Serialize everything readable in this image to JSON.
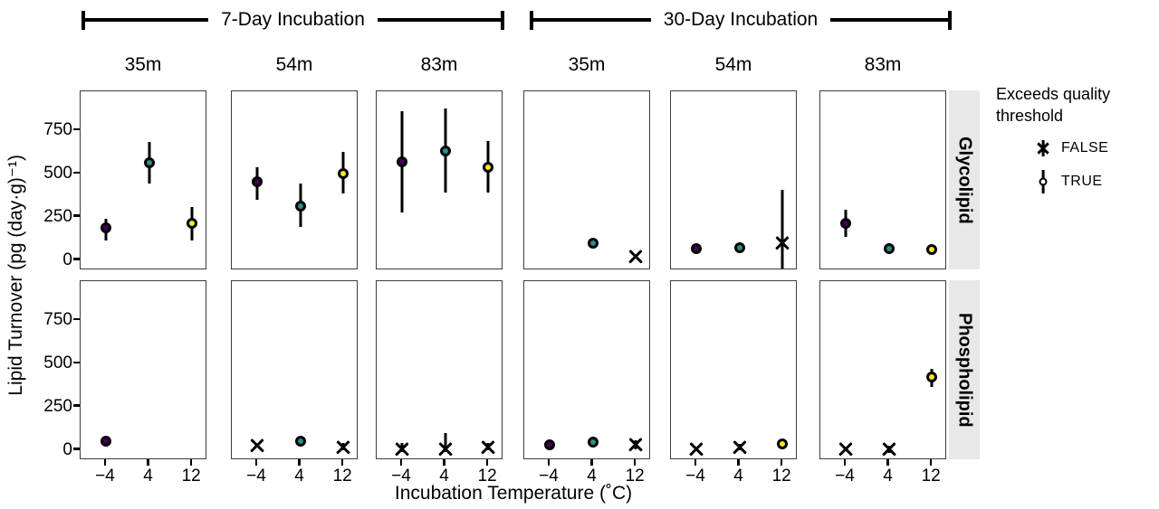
{
  "chart_data": {
    "type": "scatter",
    "title": "",
    "xlabel": "Incubation Temperature (˚C)",
    "ylabel": "Lipid Turnover (pg (day·g)⁻¹)",
    "x_values": [
      -4,
      4,
      12
    ],
    "x_tick_labels": [
      "−4",
      "4",
      "12"
    ],
    "y_ticks": [
      0,
      250,
      500,
      750
    ],
    "ylim": [
      -60,
      975
    ],
    "grid": "off",
    "column_groups": [
      "7-Day Incubation",
      "30-Day Incubation"
    ],
    "column_labels": [
      "35m",
      "54m",
      "83m",
      "35m",
      "54m",
      "83m"
    ],
    "row_labels": [
      "Glycolipid",
      "Phospholipid"
    ],
    "legend": {
      "title_lines": [
        "Exceeds quality",
        "threshold"
      ],
      "position": "right",
      "items": [
        {
          "label": "FALSE",
          "marker": "cross"
        },
        {
          "label": "TRUE",
          "marker": "circle"
        }
      ]
    },
    "temperature_colors": {
      "-4": "#440154",
      "4": "#2A9088",
      "12": "#FDE725"
    },
    "marker_rule": "filled circle = TRUE (exceeds quality threshold), black cross = FALSE",
    "panels": [
      {
        "row": "Glycolipid",
        "group": "7-Day Incubation",
        "depth": "35m",
        "points": [
          {
            "temp_c": -4,
            "value": 185,
            "err_lo": 110,
            "err_hi": 240,
            "exceeds_threshold": true
          },
          {
            "temp_c": 4,
            "value": 560,
            "err_lo": 440,
            "err_hi": 680,
            "exceeds_threshold": true
          },
          {
            "temp_c": 12,
            "value": 210,
            "err_lo": 110,
            "err_hi": 305,
            "exceeds_threshold": true
          }
        ]
      },
      {
        "row": "Glycolipid",
        "group": "7-Day Incubation",
        "depth": "54m",
        "points": [
          {
            "temp_c": -4,
            "value": 450,
            "err_lo": 350,
            "err_hi": 535,
            "exceeds_threshold": true
          },
          {
            "temp_c": 4,
            "value": 310,
            "err_lo": 190,
            "err_hi": 440,
            "exceeds_threshold": true
          },
          {
            "temp_c": 12,
            "value": 500,
            "err_lo": 385,
            "err_hi": 625,
            "exceeds_threshold": true
          }
        ]
      },
      {
        "row": "Glycolipid",
        "group": "7-Day Incubation",
        "depth": "83m",
        "points": [
          {
            "temp_c": -4,
            "value": 565,
            "err_lo": 275,
            "err_hi": 860,
            "exceeds_threshold": true
          },
          {
            "temp_c": 4,
            "value": 630,
            "err_lo": 390,
            "err_hi": 875,
            "exceeds_threshold": true
          },
          {
            "temp_c": 12,
            "value": 535,
            "err_lo": 390,
            "err_hi": 685,
            "exceeds_threshold": true
          }
        ]
      },
      {
        "row": "Glycolipid",
        "group": "30-Day Incubation",
        "depth": "35m",
        "points": [
          {
            "temp_c": 4,
            "value": 95,
            "err_lo": null,
            "err_hi": null,
            "exceeds_threshold": true
          },
          {
            "temp_c": 12,
            "value": 20,
            "err_lo": null,
            "err_hi": null,
            "exceeds_threshold": false
          }
        ]
      },
      {
        "row": "Glycolipid",
        "group": "30-Day Incubation",
        "depth": "54m",
        "points": [
          {
            "temp_c": -4,
            "value": 67,
            "err_lo": null,
            "err_hi": null,
            "exceeds_threshold": true
          },
          {
            "temp_c": 4,
            "value": 72,
            "err_lo": null,
            "err_hi": null,
            "exceeds_threshold": true
          },
          {
            "temp_c": 12,
            "value": 95,
            "err_lo": -50,
            "err_hi": 405,
            "exceeds_threshold": false
          }
        ]
      },
      {
        "row": "Glycolipid",
        "group": "30-Day Incubation",
        "depth": "83m",
        "points": [
          {
            "temp_c": -4,
            "value": 210,
            "err_lo": 135,
            "err_hi": 290,
            "exceeds_threshold": true
          },
          {
            "temp_c": 4,
            "value": 63,
            "err_lo": null,
            "err_hi": null,
            "exceeds_threshold": true
          },
          {
            "temp_c": 12,
            "value": 58,
            "err_lo": null,
            "err_hi": null,
            "exceeds_threshold": true
          }
        ]
      },
      {
        "row": "Phospholipid",
        "group": "7-Day Incubation",
        "depth": "35m",
        "points": [
          {
            "temp_c": -4,
            "value": 48,
            "err_lo": null,
            "err_hi": null,
            "exceeds_threshold": true
          }
        ]
      },
      {
        "row": "Phospholipid",
        "group": "7-Day Incubation",
        "depth": "54m",
        "points": [
          {
            "temp_c": -4,
            "value": 25,
            "err_lo": null,
            "err_hi": null,
            "exceeds_threshold": false
          },
          {
            "temp_c": 4,
            "value": 52,
            "err_lo": null,
            "err_hi": null,
            "exceeds_threshold": true
          },
          {
            "temp_c": 12,
            "value": 15,
            "err_lo": 0,
            "err_hi": 40,
            "exceeds_threshold": false
          }
        ]
      },
      {
        "row": "Phospholipid",
        "group": "7-Day Incubation",
        "depth": "83m",
        "points": [
          {
            "temp_c": -4,
            "value": 5,
            "err_lo": -15,
            "err_hi": 40,
            "exceeds_threshold": false
          },
          {
            "temp_c": 4,
            "value": 5,
            "err_lo": -15,
            "err_hi": 95,
            "exceeds_threshold": false
          },
          {
            "temp_c": 12,
            "value": 15,
            "err_lo": -5,
            "err_hi": 40,
            "exceeds_threshold": false
          }
        ]
      },
      {
        "row": "Phospholipid",
        "group": "30-Day Incubation",
        "depth": "35m",
        "points": [
          {
            "temp_c": -4,
            "value": 28,
            "err_lo": null,
            "err_hi": null,
            "exceeds_threshold": true
          },
          {
            "temp_c": 4,
            "value": 42,
            "err_lo": null,
            "err_hi": null,
            "exceeds_threshold": true
          },
          {
            "temp_c": 12,
            "value": 28,
            "err_lo": 5,
            "err_hi": 55,
            "exceeds_threshold": false
          }
        ]
      },
      {
        "row": "Phospholipid",
        "group": "30-Day Incubation",
        "depth": "54m",
        "points": [
          {
            "temp_c": -4,
            "value": 5,
            "err_lo": null,
            "err_hi": null,
            "exceeds_threshold": false
          },
          {
            "temp_c": 4,
            "value": 15,
            "err_lo": -5,
            "err_hi": 35,
            "exceeds_threshold": false
          },
          {
            "temp_c": 12,
            "value": 32,
            "err_lo": null,
            "err_hi": null,
            "exceeds_threshold": true
          }
        ]
      },
      {
        "row": "Phospholipid",
        "group": "30-Day Incubation",
        "depth": "83m",
        "points": [
          {
            "temp_c": -4,
            "value": 3,
            "err_lo": null,
            "err_hi": null,
            "exceeds_threshold": false
          },
          {
            "temp_c": 4,
            "value": 3,
            "err_lo": -20,
            "err_hi": 25,
            "exceeds_threshold": false
          },
          {
            "temp_c": 12,
            "value": 420,
            "err_lo": 365,
            "err_hi": 470,
            "exceeds_threshold": true
          }
        ]
      }
    ]
  }
}
